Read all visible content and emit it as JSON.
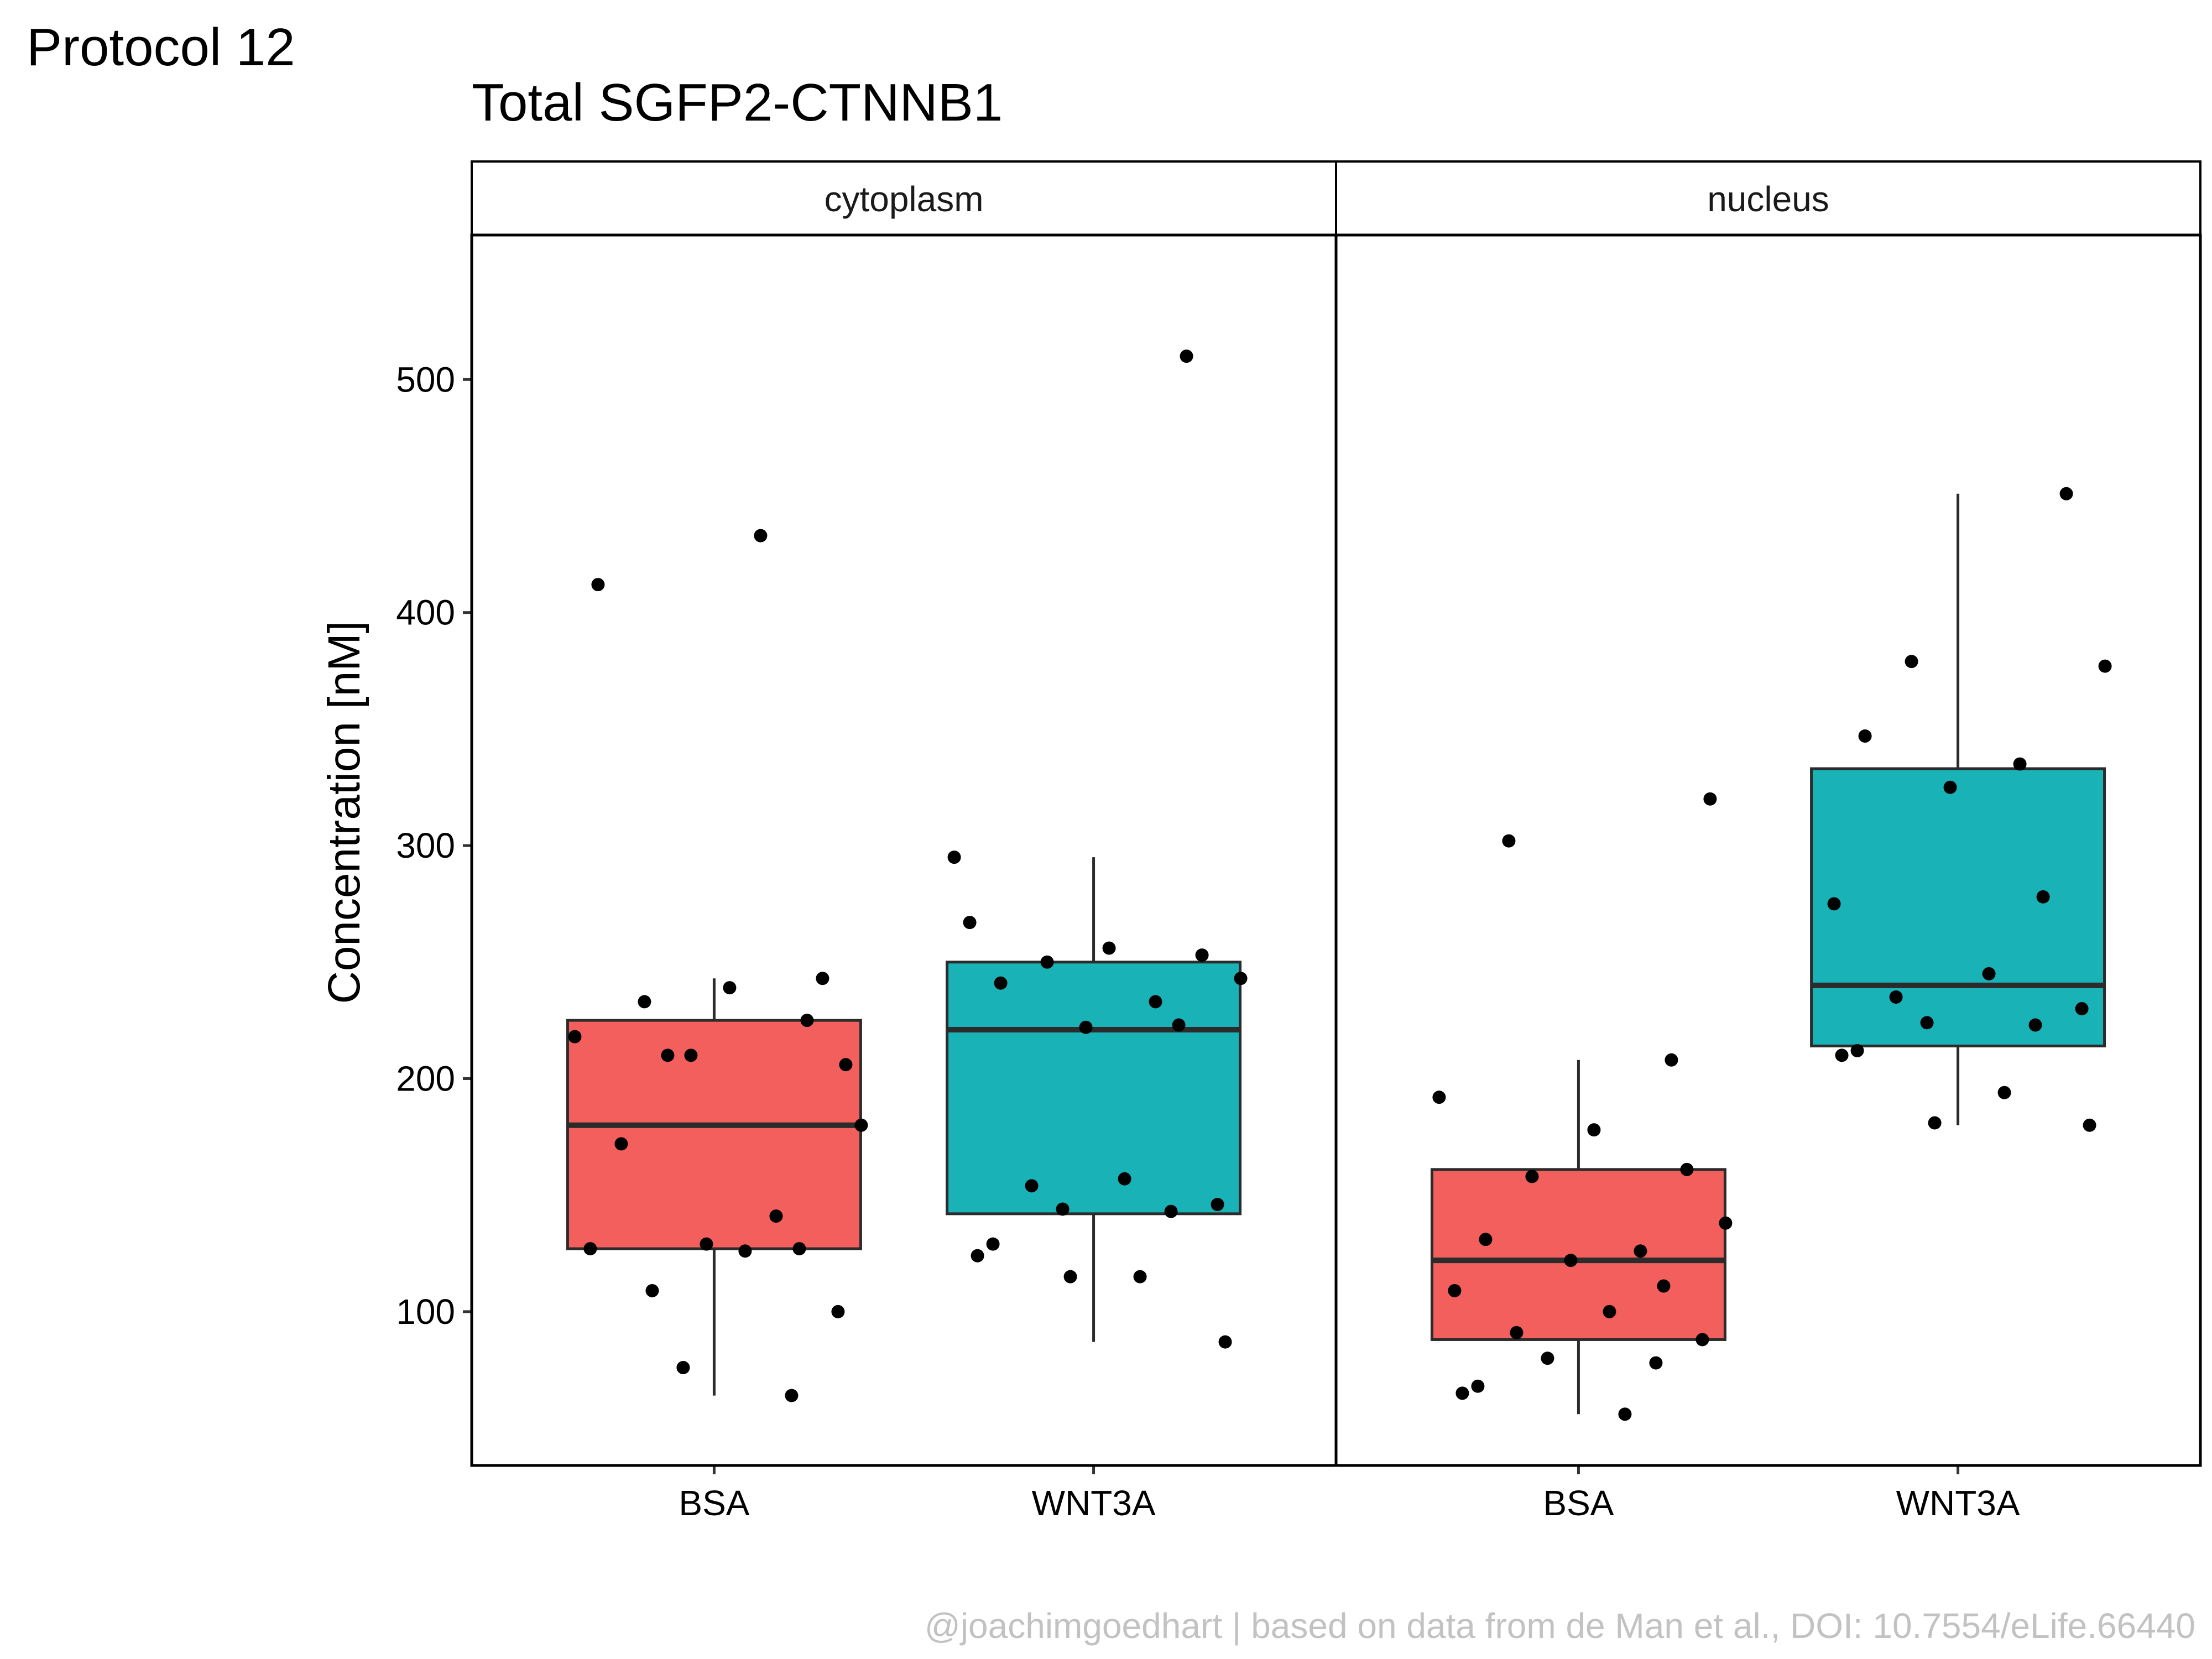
{
  "tag": "Protocol 12",
  "caption": "@joachimgoedhart | based on data from de Man et al., DOI: 10.7554/eLife.66440",
  "colors": {
    "BSA": "#F25F5C",
    "WNT3A": "#19B2B7",
    "points": "#000000"
  },
  "chart_data": {
    "type": "box",
    "title": "Total SGFP2-CTNNB1",
    "ylabel": "Concentration [nM]",
    "xlabel": "",
    "ylim": [
      34,
      562
    ],
    "yticks": [
      100,
      200,
      300,
      400,
      500
    ],
    "categories": [
      "BSA",
      "WNT3A"
    ],
    "grid": false,
    "legend": "none",
    "panels": [
      {
        "name": "cytoplasm",
        "groups": [
          {
            "category": "BSA",
            "box": {
              "whisker_low": 64,
              "q1": 127,
              "median": 180,
              "q3": 225,
              "whisker_high": 243
            },
            "points": [
              412,
              433,
              210,
              206,
              233,
              225,
              218,
              239,
              243,
              210,
              180,
              172,
              141,
              129,
              127,
              127,
              126,
              109,
              100,
              76,
              64
            ]
          },
          {
            "category": "WNT3A",
            "box": {
              "whisker_low": 87,
              "q1": 142,
              "median": 221,
              "q3": 250,
              "whisker_high": 295
            },
            "points": [
              510,
              295,
              256,
              253,
              250,
              243,
              241,
              233,
              222,
              223,
              267,
              157,
              154,
              146,
              144,
              143,
              129,
              124,
              115,
              115,
              87
            ]
          }
        ]
      },
      {
        "name": "nucleus",
        "groups": [
          {
            "category": "BSA",
            "box": {
              "whisker_low": 56,
              "q1": 88,
              "median": 122,
              "q3": 161,
              "whisker_high": 208
            },
            "points": [
              320,
              302,
              208,
              192,
              178,
              161,
              158,
              138,
              131,
              126,
              122,
              111,
              109,
              100,
              91,
              88,
              80,
              78,
              68,
              65,
              56
            ]
          },
          {
            "category": "WNT3A",
            "box": {
              "whisker_low": 180,
              "q1": 214,
              "median": 240,
              "q3": 333,
              "whisker_high": 451
            },
            "points": [
              451,
              379,
              377,
              347,
              335,
              325,
              278,
              275,
              245,
              235,
              230,
              224,
              223,
              212,
              210,
              194,
              181,
              180
            ]
          }
        ]
      }
    ]
  }
}
